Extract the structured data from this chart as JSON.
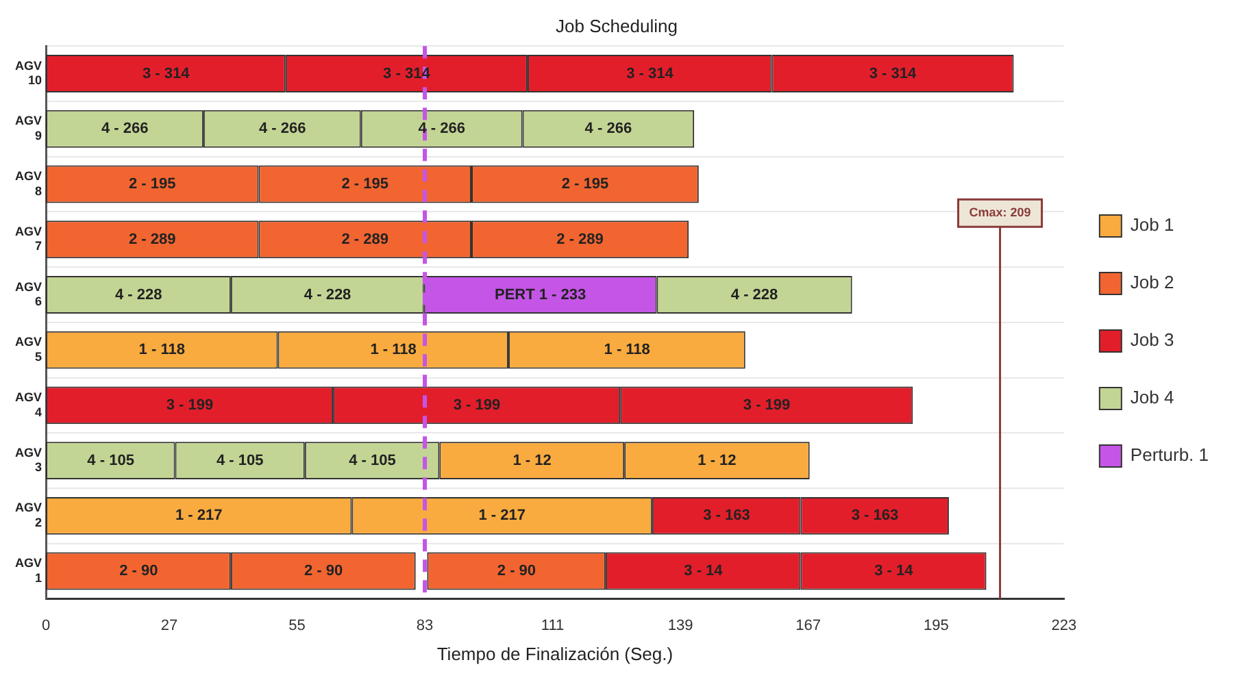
{
  "chart_data": {
    "type": "bar",
    "orientation": "horizontal",
    "title": "Job Scheduling",
    "xlabel": "Tiempo de Finalización (Seg.)",
    "categories": [
      "AGV 10",
      "AGV 9",
      "AGV 8",
      "AGV 7",
      "AGV 6",
      "AGV 5",
      "AGV 4",
      "AGV 3",
      "AGV 2",
      "AGV 1"
    ],
    "series": [
      {
        "name": "Job 1",
        "color": "#f9ab3f",
        "base": [
          null,
          null,
          null,
          null,
          null,
          0,
          null,
          86.2,
          0,
          null
        ],
        "values": [
          null,
          null,
          null,
          null,
          null,
          50.8,
          null,
          40.5,
          67,
          null
        ]
      },
      {
        "color": "#f9ab3f",
        "base": [
          null,
          null,
          null,
          null,
          null,
          50.8,
          null,
          126.7,
          67,
          null
        ],
        "values": [
          null,
          null,
          null,
          null,
          null,
          50.5,
          null,
          40.6,
          65.8,
          null
        ]
      },
      {
        "color": "#f9ab3f",
        "base": [
          null,
          null,
          null,
          null,
          null,
          101.3,
          null,
          null,
          null,
          null
        ],
        "values": [
          null,
          null,
          null,
          null,
          null,
          51.9,
          null,
          null,
          null,
          null
        ]
      },
      {
        "name": "Job 2",
        "color": "#f26531",
        "base": [
          null,
          null,
          0,
          0,
          null,
          null,
          null,
          null,
          null,
          0
        ],
        "values": [
          null,
          null,
          46.6,
          46.6,
          null,
          null,
          null,
          null,
          null,
          40.5
        ]
      },
      {
        "color": "#f26531",
        "base": [
          null,
          null,
          46.6,
          46.6,
          null,
          null,
          null,
          null,
          null,
          40.5
        ],
        "values": [
          null,
          null,
          46.6,
          46.6,
          null,
          null,
          null,
          null,
          null,
          40.5
        ]
      },
      {
        "color": "#f26531",
        "base": [
          null,
          null,
          93.2,
          93.2,
          null,
          null,
          null,
          null,
          null,
          83.5
        ],
        "values": [
          null,
          null,
          49.8,
          47.6,
          null,
          null,
          null,
          null,
          null,
          39.1
        ]
      },
      {
        "name": "Job 3",
        "color": "#e31e2b",
        "base": [
          0,
          null,
          null,
          null,
          null,
          null,
          0,
          null,
          132.8,
          122.6
        ],
        "values": [
          52.5,
          null,
          null,
          null,
          null,
          null,
          62.9,
          null,
          32.5,
          42.7
        ]
      },
      {
        "color": "#e31e2b",
        "base": [
          52.5,
          null,
          null,
          null,
          null,
          null,
          62.9,
          null,
          165.3,
          165.3
        ],
        "values": [
          53,
          null,
          null,
          null,
          null,
          null,
          62.9,
          null,
          32.5,
          40.7
        ]
      },
      {
        "color": "#e31e2b",
        "base": [
          105.5,
          null,
          null,
          null,
          null,
          null,
          125.8,
          null,
          null,
          null
        ],
        "values": [
          53.5,
          null,
          null,
          null,
          null,
          null,
          64.1,
          null,
          null,
          null
        ]
      },
      {
        "color": "#e31e2b",
        "base": [
          159,
          null,
          null,
          null,
          null,
          null,
          null,
          null,
          null,
          null
        ],
        "values": [
          53,
          null,
          null,
          null,
          null,
          null,
          null,
          null,
          null,
          null
        ]
      },
      {
        "name": "Job 4",
        "color": "#c3d594",
        "base": [
          null,
          0,
          null,
          null,
          0,
          null,
          null,
          0,
          null,
          null
        ],
        "values": [
          null,
          34.5,
          null,
          null,
          40.5,
          null,
          null,
          28.3,
          null,
          null
        ]
      },
      {
        "color": "#c3d594",
        "base": [
          null,
          34.5,
          null,
          null,
          40.5,
          null,
          null,
          28.3,
          null,
          null
        ],
        "values": [
          null,
          34.5,
          null,
          null,
          42.3,
          null,
          null,
          28.4,
          null,
          null
        ]
      },
      {
        "color": "#c3d594",
        "base": [
          null,
          69,
          null,
          null,
          133.8,
          null,
          null,
          56.7,
          null,
          null
        ],
        "values": [
          null,
          35.4,
          null,
          null,
          42.8,
          null,
          null,
          29.5,
          null,
          null
        ]
      },
      {
        "color": "#c3d594",
        "base": [
          null,
          104.4,
          null,
          null,
          null,
          null,
          null,
          null,
          null,
          null
        ],
        "values": [
          null,
          37.6,
          null,
          null,
          null,
          null,
          null,
          null,
          null,
          null
        ]
      },
      {
        "name": "Perturb. 1",
        "color": "#c455e6",
        "base": [
          null,
          null,
          null,
          null,
          82.8,
          null,
          null,
          null,
          null,
          null
        ],
        "values": [
          null,
          null,
          null,
          null,
          51,
          null,
          null,
          null,
          null,
          null
        ]
      }
    ],
    "annotations": [
      {
        "text": "3 - 314",
        "x": 26.3,
        "y": "AGV 10"
      },
      {
        "text": "3 - 314",
        "x": 79,
        "y": "AGV 10"
      },
      {
        "text": "3 - 314",
        "x": 132.3,
        "y": "AGV 10"
      },
      {
        "text": "3 - 314",
        "x": 185.5,
        "y": "AGV 10"
      },
      {
        "text": "4 - 266",
        "x": 17.3,
        "y": "AGV 9"
      },
      {
        "text": "4 - 266",
        "x": 51.8,
        "y": "AGV 9"
      },
      {
        "text": "4 - 266",
        "x": 86.7,
        "y": "AGV 9"
      },
      {
        "text": "4 - 266",
        "x": 123.2,
        "y": "AGV 9"
      },
      {
        "text": "2 - 195",
        "x": 23.3,
        "y": "AGV 8"
      },
      {
        "text": "2 - 195",
        "x": 69.9,
        "y": "AGV 8"
      },
      {
        "text": "2 - 195",
        "x": 118.1,
        "y": "AGV 8"
      },
      {
        "text": "2 - 289",
        "x": 23.3,
        "y": "AGV 7"
      },
      {
        "text": "2 - 289",
        "x": 69.9,
        "y": "AGV 7"
      },
      {
        "text": "2 - 289",
        "x": 117,
        "y": "AGV 7"
      },
      {
        "text": "4 - 228",
        "x": 20.3,
        "y": "AGV 6"
      },
      {
        "text": "4 - 228",
        "x": 61.7,
        "y": "AGV 6"
      },
      {
        "text": "PERT 1 - 233",
        "x": 108.3,
        "y": "AGV 6"
      },
      {
        "text": "4 - 228",
        "x": 155.2,
        "y": "AGV 6"
      },
      {
        "text": "1 - 118",
        "x": 25.4,
        "y": "AGV 5"
      },
      {
        "text": "1 - 118",
        "x": 76.1,
        "y": "AGV 5"
      },
      {
        "text": "1 - 118",
        "x": 127.3,
        "y": "AGV 5"
      },
      {
        "text": "3 - 199",
        "x": 31.5,
        "y": "AGV 4"
      },
      {
        "text": "3 - 199",
        "x": 94.4,
        "y": "AGV 4"
      },
      {
        "text": "3 - 199",
        "x": 157.9,
        "y": "AGV 4"
      },
      {
        "text": "4 - 105",
        "x": 14.2,
        "y": "AGV 3"
      },
      {
        "text": "4 - 105",
        "x": 42.5,
        "y": "AGV 3"
      },
      {
        "text": "4 - 105",
        "x": 71.5,
        "y": "AGV 3"
      },
      {
        "text": "1 - 12",
        "x": 106.5,
        "y": "AGV 3"
      },
      {
        "text": "1 - 12",
        "x": 147,
        "y": "AGV 3"
      },
      {
        "text": "1 - 217",
        "x": 33.5,
        "y": "AGV 2"
      },
      {
        "text": "1 - 217",
        "x": 99.9,
        "y": "AGV 2"
      },
      {
        "text": "3 - 163",
        "x": 149.1,
        "y": "AGV 2"
      },
      {
        "text": "3 - 163",
        "x": 181.6,
        "y": "AGV 2"
      },
      {
        "text": "2 - 90",
        "x": 20.3,
        "y": "AGV 1"
      },
      {
        "text": "2 - 90",
        "x": 60.8,
        "y": "AGV 1"
      },
      {
        "text": "2 - 90",
        "x": 103.1,
        "y": "AGV 1"
      },
      {
        "text": "3 - 14",
        "x": 144,
        "y": "AGV 1"
      },
      {
        "text": "3 - 14",
        "x": 185.7,
        "y": "AGV 1"
      }
    ],
    "xlim": [
      0,
      223
    ],
    "xticks": [
      0,
      27,
      55,
      83,
      111,
      139,
      167,
      195,
      223
    ],
    "ref_lines": [
      {
        "axis": "x",
        "value": 83,
        "color": "#c455e6",
        "line_style": "dashed"
      },
      {
        "axis": "x",
        "value": 209,
        "label": "Cmax: 209",
        "color": "#8b3a3a",
        "line_style": "solid"
      }
    ],
    "grid": "y",
    "legend": "right"
  }
}
